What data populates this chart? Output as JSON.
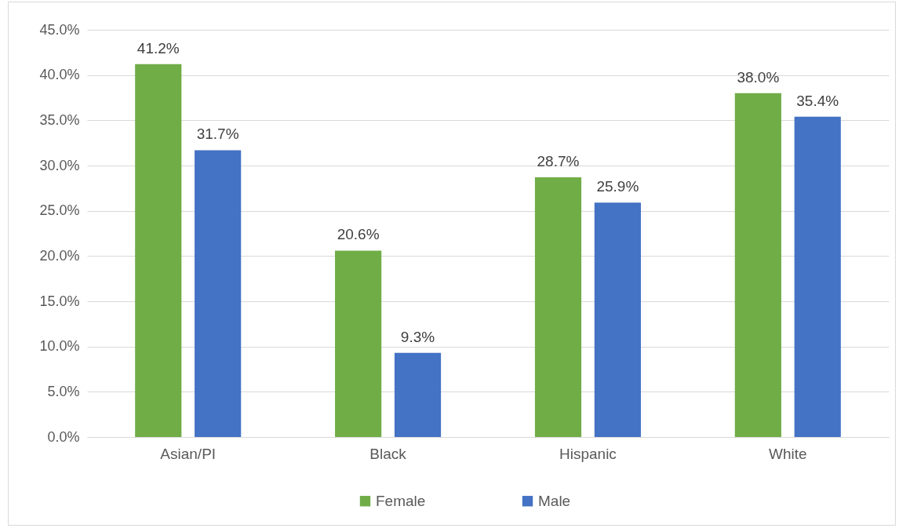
{
  "chart_data": {
    "type": "bar",
    "categories": [
      "Asian/PI",
      "Black",
      "Hispanic",
      "White"
    ],
    "series": [
      {
        "name": "Female",
        "color": "#70ad47",
        "values": [
          41.2,
          20.6,
          28.7,
          38.0
        ],
        "value_labels": [
          "41.2%",
          "20.6%",
          "28.7%",
          "38.0%"
        ]
      },
      {
        "name": "Male",
        "color": "#4472c4",
        "values": [
          31.7,
          9.3,
          25.9,
          35.4
        ],
        "value_labels": [
          "31.7%",
          "9.3%",
          "25.9%",
          "35.4%"
        ]
      }
    ],
    "ylim": [
      0,
      45
    ],
    "yticks": [
      {
        "value": 0,
        "label": "0.0%"
      },
      {
        "value": 5,
        "label": "5.0%"
      },
      {
        "value": 10,
        "label": "10.0%"
      },
      {
        "value": 15,
        "label": "15.0%"
      },
      {
        "value": 20,
        "label": "20.0%"
      },
      {
        "value": 25,
        "label": "25.0%"
      },
      {
        "value": 30,
        "label": "30.0%"
      },
      {
        "value": 35,
        "label": "35.0%"
      },
      {
        "value": 40,
        "label": "40.0%"
      },
      {
        "value": 45,
        "label": "45.0%"
      }
    ],
    "grid": "y",
    "legend": "bottom"
  }
}
